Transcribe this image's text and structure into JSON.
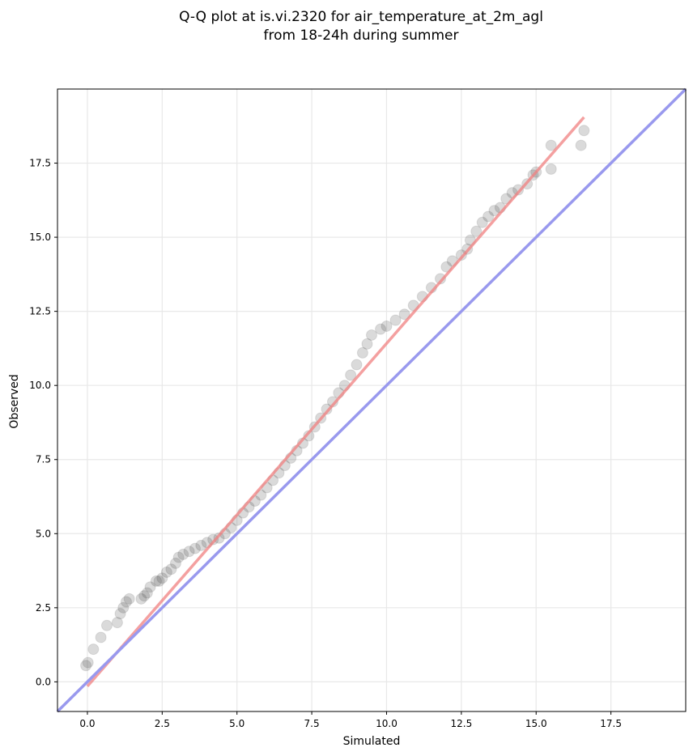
{
  "chart_data": {
    "type": "scatter",
    "title_lines": [
      "Q-Q plot at is.vi.2320 for air_temperature_at_2m_agl",
      "from 18-24h during summer"
    ],
    "xlabel": "Simulated",
    "ylabel": "Observed",
    "xlim": [
      -1.0,
      20.0
    ],
    "ylim": [
      -1.0,
      20.0
    ],
    "xticks": [
      "0.0",
      "2.5",
      "5.0",
      "7.5",
      "10.0",
      "12.5",
      "15.0",
      "17.5"
    ],
    "yticks": [
      "0.0",
      "2.5",
      "5.0",
      "7.5",
      "10.0",
      "12.5",
      "15.0",
      "17.5"
    ],
    "grid": true,
    "points": [
      [
        -0.05,
        0.55
      ],
      [
        0.02,
        0.65
      ],
      [
        0.2,
        1.1
      ],
      [
        0.45,
        1.5
      ],
      [
        0.65,
        1.9
      ],
      [
        1.0,
        2.0
      ],
      [
        1.1,
        2.3
      ],
      [
        1.2,
        2.5
      ],
      [
        1.3,
        2.7
      ],
      [
        1.4,
        2.8
      ],
      [
        1.8,
        2.8
      ],
      [
        1.9,
        2.9
      ],
      [
        2.0,
        3.0
      ],
      [
        2.1,
        3.2
      ],
      [
        2.3,
        3.4
      ],
      [
        2.4,
        3.4
      ],
      [
        2.5,
        3.5
      ],
      [
        2.65,
        3.7
      ],
      [
        2.8,
        3.8
      ],
      [
        2.95,
        4.0
      ],
      [
        3.05,
        4.2
      ],
      [
        3.2,
        4.3
      ],
      [
        3.4,
        4.4
      ],
      [
        3.6,
        4.5
      ],
      [
        3.8,
        4.6
      ],
      [
        4.0,
        4.7
      ],
      [
        4.2,
        4.8
      ],
      [
        4.4,
        4.85
      ],
      [
        4.6,
        5.0
      ],
      [
        4.8,
        5.2
      ],
      [
        5.0,
        5.45
      ],
      [
        5.2,
        5.7
      ],
      [
        5.4,
        5.9
      ],
      [
        5.6,
        6.1
      ],
      [
        5.8,
        6.3
      ],
      [
        6.0,
        6.55
      ],
      [
        6.2,
        6.8
      ],
      [
        6.4,
        7.05
      ],
      [
        6.6,
        7.3
      ],
      [
        6.8,
        7.55
      ],
      [
        7.0,
        7.8
      ],
      [
        7.2,
        8.05
      ],
      [
        7.4,
        8.3
      ],
      [
        7.6,
        8.6
      ],
      [
        7.8,
        8.9
      ],
      [
        8.0,
        9.2
      ],
      [
        8.2,
        9.45
      ],
      [
        8.4,
        9.75
      ],
      [
        8.6,
        10.0
      ],
      [
        8.8,
        10.35
      ],
      [
        9.0,
        10.7
      ],
      [
        9.2,
        11.1
      ],
      [
        9.35,
        11.4
      ],
      [
        9.5,
        11.7
      ],
      [
        9.8,
        11.9
      ],
      [
        10.0,
        12.0
      ],
      [
        10.3,
        12.2
      ],
      [
        10.6,
        12.4
      ],
      [
        10.9,
        12.7
      ],
      [
        11.2,
        13.0
      ],
      [
        11.5,
        13.3
      ],
      [
        11.8,
        13.6
      ],
      [
        12.0,
        14.0
      ],
      [
        12.2,
        14.2
      ],
      [
        12.5,
        14.4
      ],
      [
        12.7,
        14.6
      ],
      [
        12.8,
        14.9
      ],
      [
        13.0,
        15.2
      ],
      [
        13.2,
        15.5
      ],
      [
        13.4,
        15.7
      ],
      [
        13.6,
        15.9
      ],
      [
        13.8,
        16.0
      ],
      [
        14.0,
        16.3
      ],
      [
        14.2,
        16.5
      ],
      [
        14.4,
        16.6
      ],
      [
        14.7,
        16.8
      ],
      [
        14.9,
        17.1
      ],
      [
        15.0,
        17.2
      ],
      [
        15.5,
        17.3
      ],
      [
        15.5,
        18.1
      ],
      [
        16.5,
        18.1
      ],
      [
        16.6,
        18.6
      ]
    ],
    "fit_line": {
      "x": [
        0.0,
        16.6
      ],
      "y": [
        -0.15,
        19.05
      ],
      "color": "#f08080"
    },
    "identity_line": {
      "x": [
        -1.0,
        20.0
      ],
      "y": [
        -1.0,
        20.0
      ],
      "color": "#9999ee"
    },
    "point_color": "#333333"
  }
}
